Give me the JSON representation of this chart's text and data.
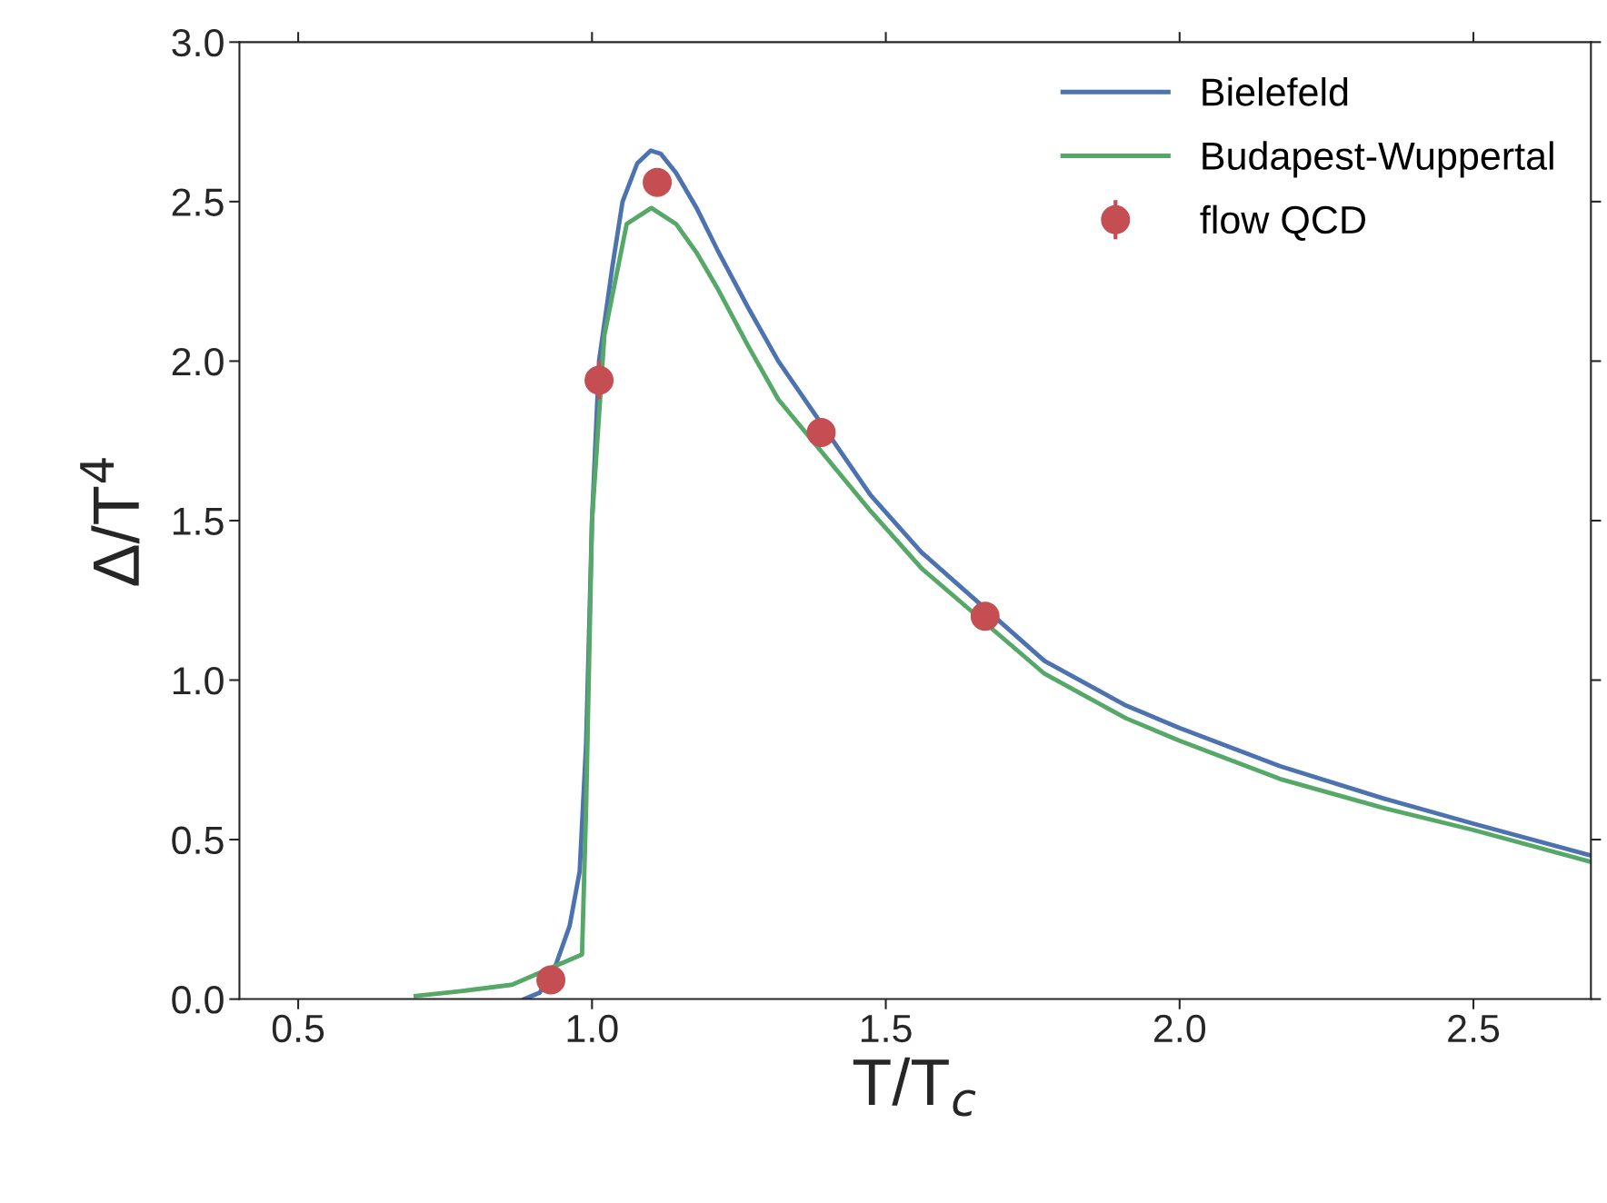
{
  "chart_data": {
    "type": "line",
    "xlabel": "T/T$_{c}$",
    "ylabel": "Δ/T$^{4}$",
    "xlim": [
      0.4,
      2.7
    ],
    "xticks": [
      0.5,
      {
        "value": 1,
        "label": "1.0"
      },
      1.5,
      {
        "value": 2,
        "label": "2.0"
      },
      2.5
    ],
    "ylim": [
      0.0,
      3.0
    ],
    "yticks": [
      {
        "value": 0,
        "label": "0.0"
      },
      0.5,
      {
        "value": 1,
        "label": "1.0"
      },
      1.5,
      {
        "value": 2,
        "label": "2.0"
      },
      2.5,
      {
        "value": 3,
        "label": "3.0"
      }
    ],
    "grid": false,
    "legend": "top right",
    "marker": "none",
    "line_style": "solid",
    "series": [
      {
        "name": "Bielefeld",
        "color": "#4c72b0",
        "x": [
          0.885,
          0.911,
          0.937,
          0.962,
          0.979,
          0.99,
          1.0,
          1.012,
          1.035,
          1.052,
          1.077,
          1.1,
          1.117,
          1.143,
          1.178,
          1.213,
          1.265,
          1.317,
          1.474,
          1.561,
          1.77,
          1.909,
          2.0,
          2.171,
          2.345,
          2.5,
          2.7
        ],
        "values": [
          0.0,
          0.02,
          0.1,
          0.23,
          0.4,
          0.8,
          1.5,
          2.0,
          2.3,
          2.5,
          2.62,
          2.66,
          2.65,
          2.59,
          2.48,
          2.35,
          2.17,
          2.0,
          1.58,
          1.4,
          1.06,
          0.92,
          0.85,
          0.73,
          0.63,
          0.55,
          0.45
        ]
      },
      {
        "name": "Budapest-Wuppertal",
        "color": "#55a868",
        "x": [
          0.7,
          0.777,
          0.864,
          0.983,
          0.99,
          1.0,
          1.021,
          1.059,
          1.101,
          1.143,
          1.178,
          1.213,
          1.265,
          1.317,
          1.474,
          1.561,
          1.77,
          1.909,
          2.0,
          2.171,
          2.345,
          2.5,
          2.7
        ],
        "values": [
          0.01,
          0.025,
          0.045,
          0.14,
          0.6,
          1.5,
          2.08,
          2.43,
          2.48,
          2.43,
          2.34,
          2.23,
          2.05,
          1.88,
          1.53,
          1.35,
          1.02,
          0.88,
          0.81,
          0.69,
          0.6,
          0.53,
          0.43
        ]
      },
      {
        "name": "flow QCD",
        "type": "scatter",
        "color": "#c44e52",
        "marker": "circle",
        "x": [
          0.93,
          1.012,
          1.111,
          1.39,
          1.669
        ],
        "values": [
          0.06,
          1.94,
          2.56,
          1.776,
          1.2
        ],
        "errors": [
          null,
          0.06,
          null,
          null,
          null
        ]
      }
    ]
  }
}
